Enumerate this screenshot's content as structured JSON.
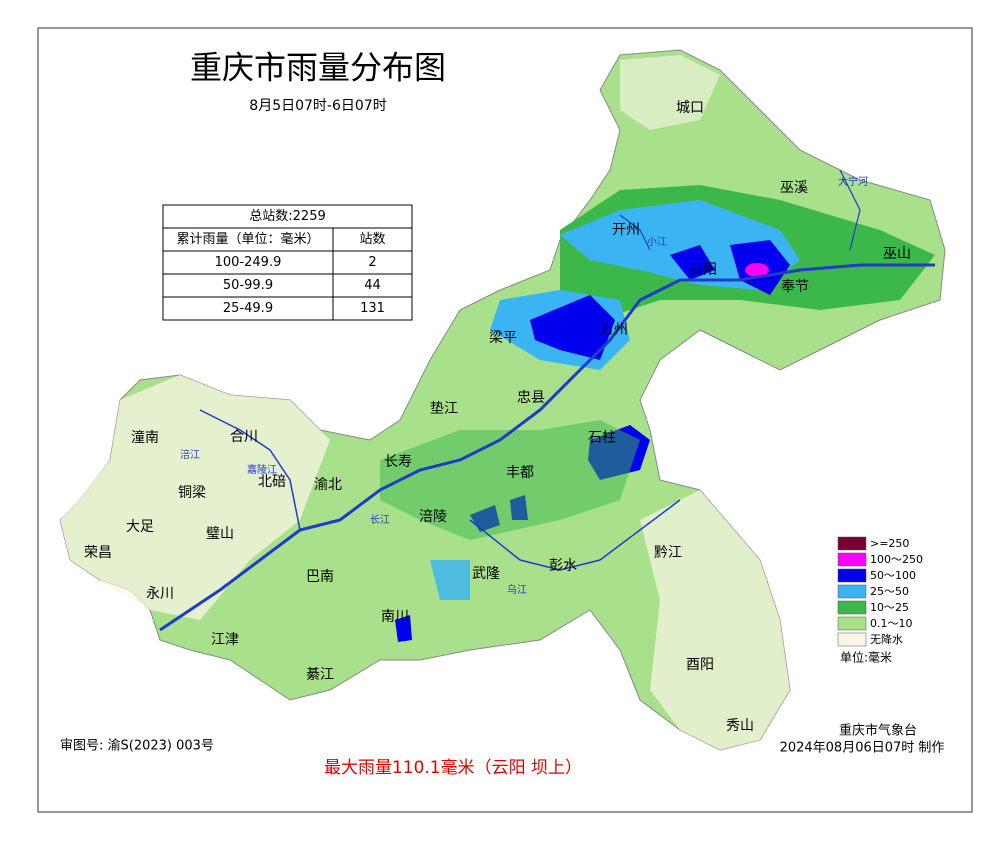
{
  "header": {
    "title": "重庆市雨量分布图",
    "subtitle": "8月5日07时-6日07时"
  },
  "table": {
    "total": "总站数:2259",
    "columns": [
      "累计雨量（单位：毫米）",
      "站数"
    ],
    "rows": [
      [
        "100-249.9",
        2
      ],
      [
        "50-99.9",
        44
      ],
      [
        "25-49.9",
        131
      ]
    ]
  },
  "legend": {
    "items": [
      {
        "label": ">=250",
        "color": "#7a0033"
      },
      {
        "label": "100～250",
        "color": "#ff00ff"
      },
      {
        "label": "50～100",
        "color": "#0000ee"
      },
      {
        "label": "25～50",
        "color": "#3ab4f2"
      },
      {
        "label": "10～25",
        "color": "#3cb84a"
      },
      {
        "label": "0.1～10",
        "color": "#a8e08c"
      },
      {
        "label": "无降水",
        "color": "#faf5e6"
      }
    ],
    "unit": "单位:毫米"
  },
  "districts": [
    "城口",
    "巫溪",
    "开州",
    "云阳",
    "巫山",
    "奉节",
    "梁平",
    "万州",
    "垫江",
    "忠县",
    "石柱",
    "长寿",
    "丰都",
    "涪陵",
    "武隆",
    "彭水",
    "黔江",
    "酉阳",
    "秀山",
    "南川",
    "巴南",
    "綦江",
    "江津",
    "永川",
    "荣昌",
    "大足",
    "铜梁",
    "潼南",
    "合川",
    "北碚",
    "渝北",
    "璧山"
  ],
  "rivers": [
    "长江",
    "乌江",
    "嘉陵江",
    "涪江",
    "小江",
    "大宁河"
  ],
  "footer": {
    "approval": "审图号: 渝S(2023) 003号",
    "max": "最大雨量110.1毫米（云阳 坝上）",
    "agency": "重庆市气象台",
    "made": "2024年08月06日07时 制作"
  }
}
